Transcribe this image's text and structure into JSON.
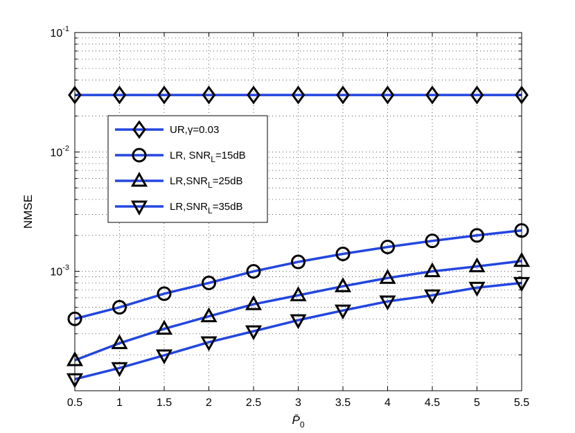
{
  "chart_data": {
    "type": "line",
    "title": "",
    "xlabel": "P̄0",
    "ylabel": "NMSE",
    "xscale": "linear",
    "yscale": "log",
    "xlim": [
      0.5,
      5.5
    ],
    "ylim": [
      0.0001,
      0.1
    ],
    "xticks": [
      "0.5",
      "1",
      "1.5",
      "2",
      "2.5",
      "3",
      "3.5",
      "4",
      "4.5",
      "5",
      "5.5"
    ],
    "yticks": [
      {
        "value": 0.1,
        "base": "10",
        "exp": "-1"
      },
      {
        "value": 0.01,
        "base": "10",
        "exp": "-2"
      },
      {
        "value": 0.001,
        "base": "10",
        "exp": "-3"
      }
    ],
    "grid": true,
    "legend_position": "upper-left",
    "line_color": "#2346e0",
    "x": [
      0.5,
      1,
      1.5,
      2,
      2.5,
      3,
      3.5,
      4,
      4.5,
      5,
      5.5
    ],
    "series": [
      {
        "name": "UR,γ=0.03",
        "legend_parts": [
          {
            "t": "UR,γ=0.03"
          }
        ],
        "marker": "diamond",
        "values": [
          0.03,
          0.03,
          0.03,
          0.03,
          0.03,
          0.03,
          0.03,
          0.03,
          0.03,
          0.03,
          0.03
        ]
      },
      {
        "name": "LR, SNR_L=15dB",
        "legend_parts": [
          {
            "t": "LR, SNR"
          },
          {
            "t": "L",
            "sub": true
          },
          {
            "t": "=15dB"
          }
        ],
        "marker": "circle",
        "values": [
          0.0004,
          0.0005,
          0.00065,
          0.0008,
          0.001,
          0.0012,
          0.0014,
          0.0016,
          0.0018,
          0.002,
          0.0022
        ]
      },
      {
        "name": "LR,SNR_L=25dB",
        "legend_parts": [
          {
            "t": "LR,SNR"
          },
          {
            "t": "L",
            "sub": true
          },
          {
            "t": "=25dB"
          }
        ],
        "marker": "triangle-up",
        "values": [
          0.00018,
          0.00025,
          0.00033,
          0.00042,
          0.00053,
          0.00063,
          0.00075,
          0.00088,
          0.001,
          0.0011,
          0.00122
        ]
      },
      {
        "name": "LR,SNR_L=35dB",
        "legend_parts": [
          {
            "t": "LR,SNR"
          },
          {
            "t": "L",
            "sub": true
          },
          {
            "t": "=35dB"
          }
        ],
        "marker": "triangle-down",
        "values": [
          0.000125,
          0.000155,
          0.000198,
          0.000255,
          0.000315,
          0.00039,
          0.00047,
          0.00056,
          0.00063,
          0.00073,
          0.0008
        ]
      }
    ]
  }
}
